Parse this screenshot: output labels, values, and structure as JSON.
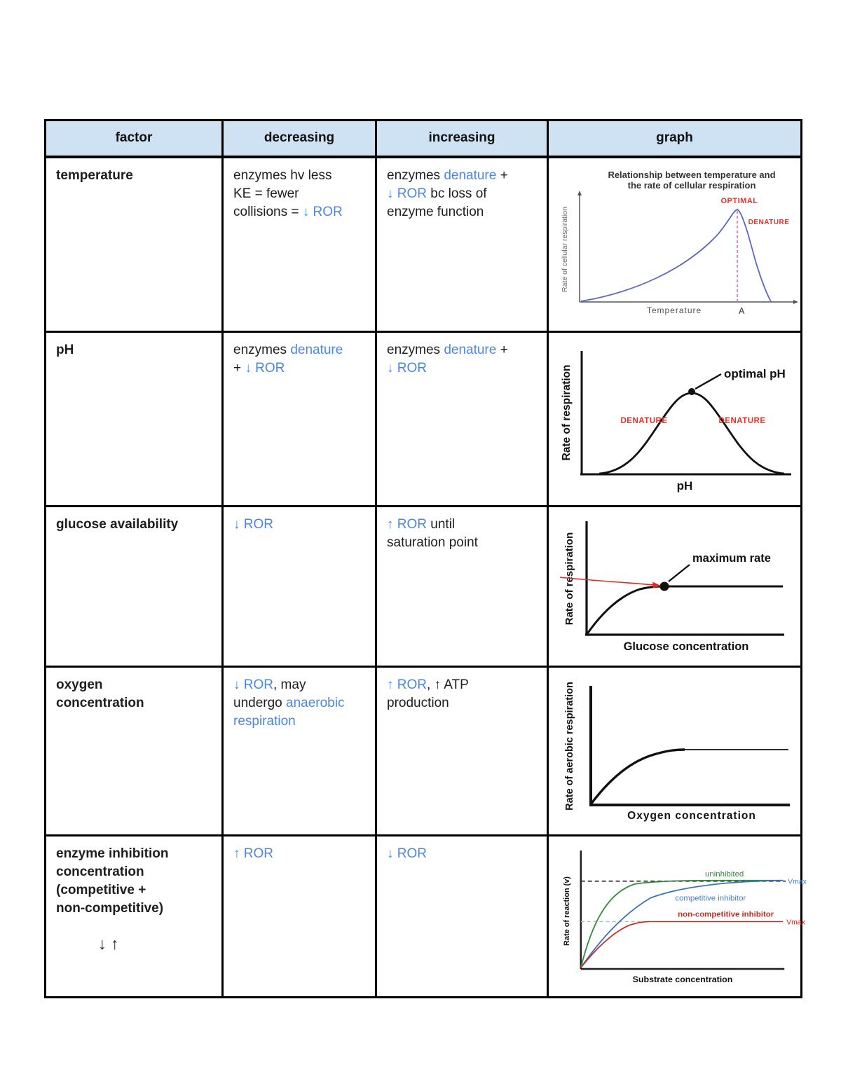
{
  "colors": {
    "header_fill": "#cfe2f3",
    "accent_blue_text": "#4a86e8",
    "annotation_red": "#ee2e24",
    "temp_curve_blue": "#5b67c0",
    "optimal_dashed_pink": "#d46ea8",
    "series_green": "#2f8b3c",
    "series_blue": "#3a6fc4",
    "series_red": "#cc2a1e"
  },
  "page": {
    "note_below_table": "↓ ↑"
  },
  "table": {
    "headers": [
      "factor",
      "decreasing",
      "increasing",
      "graph"
    ],
    "rows": [
      {
        "factor": "temperature",
        "decreasing": [
          {
            "t": "enzymes hv less\nKE = fewer\ncollisions = ",
            "c": "black"
          },
          {
            "t": "↓ ROR",
            "c": "blue"
          }
        ],
        "increasing": [
          {
            "t": "enzymes ",
            "c": "black"
          },
          {
            "t": "denature",
            "c": "blue"
          },
          {
            "t": " +\n",
            "c": "black"
          },
          {
            "t": "↓ ROR",
            "c": "blue"
          },
          {
            "t": " bc loss of\nenzyme function",
            "c": "black"
          }
        ],
        "graph": {
          "type": "line",
          "title1": "Relationship between temperature and",
          "title2": "the rate of cellular respiration",
          "ylabel": "Rate of cellular respiration",
          "xlabel": "Temperature",
          "xmark": "A",
          "optimal": "OPTIMAL",
          "denature": "DENATURE"
        }
      },
      {
        "factor": "pH",
        "decreasing": [
          {
            "t": "enzymes ",
            "c": "black"
          },
          {
            "t": "denature",
            "c": "blue"
          },
          {
            "t": "\n+ ",
            "c": "black"
          },
          {
            "t": "↓ ROR",
            "c": "blue"
          }
        ],
        "increasing": [
          {
            "t": "enzymes ",
            "c": "black"
          },
          {
            "t": "denature",
            "c": "blue"
          },
          {
            "t": " +\n",
            "c": "black"
          },
          {
            "t": "↓ ROR",
            "c": "blue"
          }
        ],
        "graph": {
          "type": "line",
          "ylabel": "Rate of respiration",
          "xlabel": "pH",
          "peak_label": "optimal pH",
          "denature_left": "DENATURE",
          "denature_right": "DENATURE"
        }
      },
      {
        "factor": "glucose availability",
        "decreasing": [
          {
            "t": "↓ ROR",
            "c": "blue"
          }
        ],
        "increasing": [
          {
            "t": "↑ ROR",
            "c": "blue"
          },
          {
            "t": " until\nsaturation point",
            "c": "black"
          }
        ],
        "graph": {
          "type": "line",
          "ylabel": "Rate of respiration",
          "xlabel": "Glucose concentration",
          "max_label": "maximum rate"
        }
      },
      {
        "factor": "oxygen\nconcentration",
        "decreasing": [
          {
            "t": "↓ ROR",
            "c": "blue"
          },
          {
            "t": ", may\nundergo ",
            "c": "black"
          },
          {
            "t": "anaerobic\nrespiration",
            "c": "blue"
          }
        ],
        "increasing": [
          {
            "t": "↑ ROR",
            "c": "blue"
          },
          {
            "t": ", ↑ ATP\nproduction",
            "c": "black"
          }
        ],
        "graph": {
          "type": "line",
          "ylabel": "Rate of aerobic respiration",
          "xlabel": "Oxygen concentration"
        }
      },
      {
        "factor": "enzyme inhibition\nconcentration\n(competitive +\nnon-competitive)",
        "decreasing": [
          {
            "t": "↑ ROR",
            "c": "blue"
          }
        ],
        "increasing": [
          {
            "t": "↓ ROR",
            "c": "blue"
          }
        ],
        "graph": {
          "type": "line",
          "ylabel": "Rate of reaction (v)",
          "xlabel": "Substrate concentration",
          "uninhibited": "uninhibited",
          "competitive": "competitive inhibitor",
          "noncompetitive": "non-competitive inhibitor",
          "vmax_top": "Vmax",
          "vmax_bottom": "Vmax"
        }
      }
    ]
  }
}
